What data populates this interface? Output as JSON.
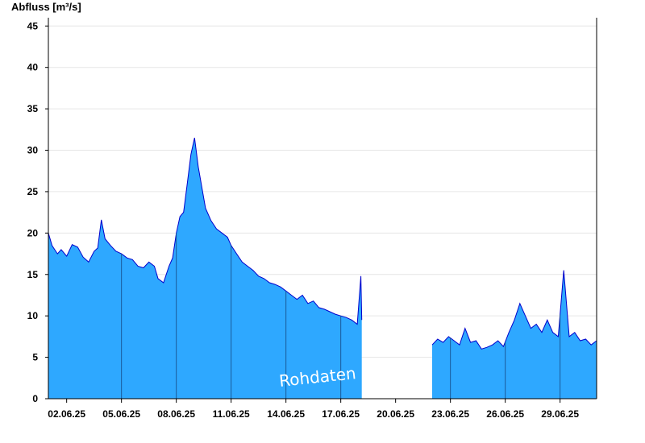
{
  "chart_data": {
    "type": "area",
    "ylabel": "Abfluss [m³/s]",
    "watermark": "Rohdaten",
    "ylim": [
      0,
      46
    ],
    "yticks": [
      0,
      5,
      10,
      15,
      20,
      25,
      30,
      35,
      40,
      45
    ],
    "xlim_days": [
      1.0,
      31.0
    ],
    "xtick_labels": [
      "02.06.25",
      "05.06.25",
      "08.06.25",
      "11.06.25",
      "14.06.25",
      "17.06.25",
      "20.06.25",
      "23.06.25",
      "26.06.25",
      "29.06.25"
    ],
    "grid": true,
    "fill_color": "#2ea8ff",
    "line_color": "#0000cc",
    "series": [
      {
        "values": [
          [
            1.0,
            20.0
          ],
          [
            1.2,
            18.5
          ],
          [
            1.5,
            17.5
          ],
          [
            1.7,
            18.0
          ],
          [
            2.0,
            17.2
          ],
          [
            2.3,
            18.6
          ],
          [
            2.6,
            18.3
          ],
          [
            2.9,
            17.1
          ],
          [
            3.2,
            16.5
          ],
          [
            3.5,
            17.8
          ],
          [
            3.7,
            18.2
          ],
          [
            3.9,
            21.6
          ],
          [
            4.1,
            19.3
          ],
          [
            4.4,
            18.5
          ],
          [
            4.7,
            17.8
          ],
          [
            5.0,
            17.5
          ],
          [
            5.3,
            17.0
          ],
          [
            5.6,
            16.8
          ],
          [
            5.9,
            16.0
          ],
          [
            6.2,
            15.8
          ],
          [
            6.5,
            16.5
          ],
          [
            6.8,
            16.0
          ],
          [
            7.0,
            14.5
          ],
          [
            7.3,
            14.0
          ],
          [
            7.6,
            16.0
          ],
          [
            7.8,
            17.0
          ],
          [
            8.0,
            20.0
          ],
          [
            8.2,
            22.0
          ],
          [
            8.4,
            22.5
          ],
          [
            8.6,
            26.0
          ],
          [
            8.8,
            29.5
          ],
          [
            9.0,
            31.5
          ],
          [
            9.2,
            28.0
          ],
          [
            9.4,
            25.5
          ],
          [
            9.6,
            23.0
          ],
          [
            9.9,
            21.5
          ],
          [
            10.2,
            20.5
          ],
          [
            10.5,
            20.0
          ],
          [
            10.8,
            19.5
          ],
          [
            11.0,
            18.5
          ],
          [
            11.3,
            17.5
          ],
          [
            11.6,
            16.5
          ],
          [
            11.9,
            16.0
          ],
          [
            12.2,
            15.5
          ],
          [
            12.5,
            14.8
          ],
          [
            12.8,
            14.5
          ],
          [
            13.1,
            14.0
          ],
          [
            13.4,
            13.8
          ],
          [
            13.7,
            13.5
          ],
          [
            14.0,
            13.0
          ],
          [
            14.3,
            12.5
          ],
          [
            14.6,
            12.0
          ],
          [
            14.9,
            12.5
          ],
          [
            15.2,
            11.5
          ],
          [
            15.5,
            11.8
          ],
          [
            15.8,
            11.0
          ],
          [
            16.1,
            10.8
          ],
          [
            16.4,
            10.5
          ],
          [
            16.7,
            10.2
          ],
          [
            17.0,
            10.0
          ],
          [
            17.3,
            9.8
          ],
          [
            17.6,
            9.5
          ],
          [
            17.9,
            9.0
          ],
          [
            18.1,
            14.8
          ],
          [
            18.15,
            9.5
          ]
        ]
      },
      {
        "values": [
          [
            22.0,
            6.5
          ],
          [
            22.3,
            7.2
          ],
          [
            22.6,
            6.8
          ],
          [
            22.9,
            7.5
          ],
          [
            23.2,
            7.0
          ],
          [
            23.5,
            6.5
          ],
          [
            23.8,
            8.5
          ],
          [
            24.1,
            6.8
          ],
          [
            24.4,
            7.0
          ],
          [
            24.7,
            6.0
          ],
          [
            25.0,
            6.2
          ],
          [
            25.3,
            6.5
          ],
          [
            25.6,
            7.0
          ],
          [
            25.9,
            6.3
          ],
          [
            26.2,
            8.0
          ],
          [
            26.5,
            9.5
          ],
          [
            26.8,
            11.5
          ],
          [
            27.1,
            10.0
          ],
          [
            27.4,
            8.5
          ],
          [
            27.7,
            9.0
          ],
          [
            28.0,
            8.0
          ],
          [
            28.3,
            9.5
          ],
          [
            28.6,
            8.0
          ],
          [
            28.9,
            7.5
          ],
          [
            29.2,
            15.5
          ],
          [
            29.5,
            7.5
          ],
          [
            29.8,
            8.0
          ],
          [
            30.1,
            7.0
          ],
          [
            30.4,
            7.2
          ],
          [
            30.7,
            6.5
          ],
          [
            31.0,
            7.0
          ]
        ]
      }
    ]
  }
}
